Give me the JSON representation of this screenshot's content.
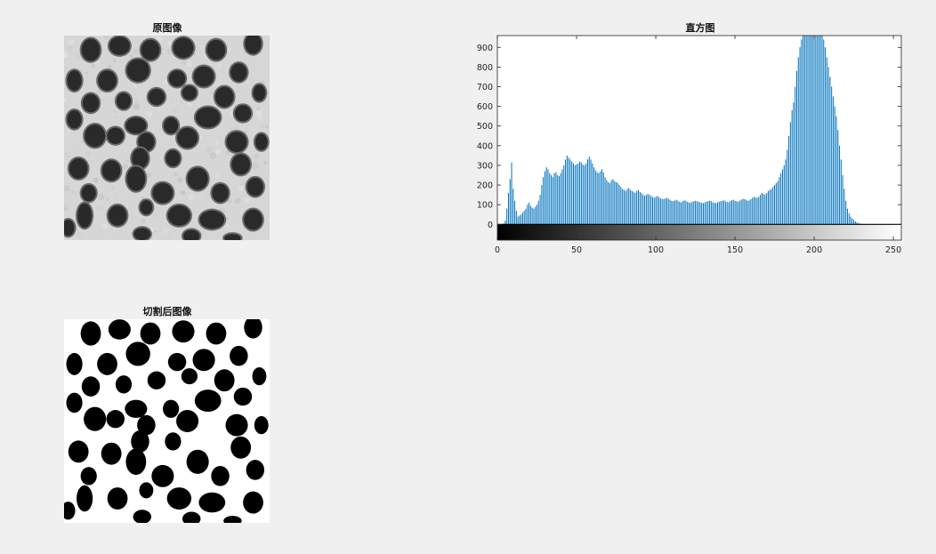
{
  "figure": {
    "original_title": "原图像",
    "histogram_title": "直方图",
    "segmented_title": "切割后图像"
  },
  "colors": {
    "background": "#f0f0f0",
    "bar": "#0072bd",
    "axis": "#262626",
    "image_bg": "#d4d4d4",
    "blob": "#2a2a2a"
  },
  "chart_data": {
    "type": "bar",
    "title": "直方图",
    "xlabel": "",
    "ylabel": "",
    "xlim": [
      0,
      255
    ],
    "ylim": [
      -80,
      960
    ],
    "xticks": [
      0,
      50,
      100,
      150,
      200,
      250
    ],
    "yticks": [
      0,
      100,
      200,
      300,
      400,
      500,
      600,
      700,
      800,
      900
    ],
    "colorbar": "grayscale 0-255 below axis",
    "grid": false,
    "values": [
      0,
      0,
      0,
      0,
      5,
      20,
      80,
      160,
      230,
      315,
      180,
      120,
      70,
      40,
      45,
      50,
      60,
      70,
      80,
      100,
      110,
      95,
      85,
      80,
      90,
      100,
      120,
      150,
      200,
      240,
      270,
      290,
      280,
      260,
      250,
      240,
      260,
      265,
      250,
      245,
      260,
      280,
      300,
      330,
      350,
      340,
      330,
      320,
      310,
      300,
      305,
      310,
      320,
      315,
      305,
      300,
      310,
      330,
      345,
      330,
      310,
      290,
      275,
      265,
      260,
      270,
      280,
      265,
      240,
      225,
      215,
      210,
      225,
      230,
      220,
      215,
      210,
      200,
      190,
      180,
      175,
      170,
      180,
      185,
      175,
      170,
      165,
      160,
      170,
      175,
      165,
      160,
      150,
      145,
      150,
      155,
      150,
      145,
      140,
      135,
      140,
      145,
      138,
      132,
      130,
      128,
      132,
      135,
      130,
      125,
      120,
      118,
      122,
      125,
      120,
      115,
      112,
      118,
      122,
      120,
      115,
      112,
      110,
      115,
      118,
      120,
      118,
      115,
      112,
      110,
      108,
      112,
      115,
      118,
      120,
      118,
      112,
      110,
      108,
      112,
      115,
      118,
      120,
      122,
      118,
      115,
      112,
      118,
      122,
      125,
      120,
      118,
      115,
      120,
      125,
      130,
      128,
      125,
      120,
      122,
      128,
      135,
      140,
      138,
      135,
      140,
      150,
      160,
      155,
      150,
      160,
      170,
      175,
      180,
      190,
      200,
      210,
      220,
      240,
      260,
      280,
      300,
      330,
      380,
      450,
      520,
      580,
      620,
      700,
      780,
      850,
      900,
      940,
      960,
      960,
      960,
      960,
      960,
      960,
      960,
      960,
      960,
      960,
      960,
      960,
      960,
      940,
      900,
      850,
      800,
      750,
      700,
      650,
      600,
      550,
      480,
      400,
      330,
      250,
      180,
      120,
      80,
      55,
      40,
      30,
      22,
      15,
      10,
      6,
      4,
      2,
      1,
      0,
      0,
      0,
      0,
      0,
      0,
      0,
      0,
      0,
      0,
      0,
      0,
      0,
      0,
      0,
      0,
      0,
      0,
      0,
      0,
      0,
      0
    ]
  },
  "original_image": {
    "blobs": [
      [
        0.13,
        0.07,
        0.045,
        0.055
      ],
      [
        0.27,
        0.05,
        0.05,
        0.045
      ],
      [
        0.42,
        0.07,
        0.045,
        0.05
      ],
      [
        0.58,
        0.06,
        0.05,
        0.05
      ],
      [
        0.74,
        0.07,
        0.045,
        0.05
      ],
      [
        0.92,
        0.04,
        0.04,
        0.05
      ],
      [
        0.05,
        0.22,
        0.035,
        0.05
      ],
      [
        0.21,
        0.22,
        0.045,
        0.05
      ],
      [
        0.36,
        0.17,
        0.055,
        0.055
      ],
      [
        0.55,
        0.21,
        0.04,
        0.04
      ],
      [
        0.68,
        0.2,
        0.05,
        0.05
      ],
      [
        0.85,
        0.18,
        0.04,
        0.045
      ],
      [
        0.13,
        0.33,
        0.04,
        0.045
      ],
      [
        0.29,
        0.32,
        0.035,
        0.04
      ],
      [
        0.45,
        0.3,
        0.04,
        0.04
      ],
      [
        0.61,
        0.28,
        0.035,
        0.035
      ],
      [
        0.78,
        0.3,
        0.045,
        0.05
      ],
      [
        0.95,
        0.28,
        0.03,
        0.04
      ],
      [
        0.05,
        0.41,
        0.035,
        0.045
      ],
      [
        0.15,
        0.49,
        0.05,
        0.055
      ],
      [
        0.35,
        0.44,
        0.05,
        0.04
      ],
      [
        0.52,
        0.44,
        0.035,
        0.04
      ],
      [
        0.7,
        0.4,
        0.06,
        0.05
      ],
      [
        0.87,
        0.38,
        0.04,
        0.04
      ],
      [
        0.25,
        0.49,
        0.04,
        0.04
      ],
      [
        0.4,
        0.52,
        0.04,
        0.045
      ],
      [
        0.6,
        0.5,
        0.05,
        0.05
      ],
      [
        0.84,
        0.52,
        0.05,
        0.05
      ],
      [
        0.96,
        0.52,
        0.03,
        0.04
      ],
      [
        0.07,
        0.65,
        0.045,
        0.05
      ],
      [
        0.23,
        0.66,
        0.045,
        0.05
      ],
      [
        0.37,
        0.6,
        0.04,
        0.05
      ],
      [
        0.35,
        0.7,
        0.045,
        0.06
      ],
      [
        0.53,
        0.6,
        0.035,
        0.04
      ],
      [
        0.65,
        0.7,
        0.05,
        0.055
      ],
      [
        0.86,
        0.63,
        0.045,
        0.05
      ],
      [
        0.12,
        0.77,
        0.035,
        0.04
      ],
      [
        0.48,
        0.77,
        0.05,
        0.05
      ],
      [
        0.76,
        0.77,
        0.04,
        0.045
      ],
      [
        0.93,
        0.74,
        0.04,
        0.045
      ],
      [
        0.1,
        0.88,
        0.035,
        0.06
      ],
      [
        0.26,
        0.88,
        0.045,
        0.05
      ],
      [
        0.4,
        0.84,
        0.03,
        0.035
      ],
      [
        0.56,
        0.88,
        0.055,
        0.05
      ],
      [
        0.72,
        0.9,
        0.06,
        0.045
      ],
      [
        0.92,
        0.9,
        0.045,
        0.05
      ],
      [
        0.02,
        0.94,
        0.03,
        0.04
      ],
      [
        0.38,
        0.97,
        0.04,
        0.03
      ],
      [
        0.62,
        0.98,
        0.04,
        0.03
      ],
      [
        0.82,
        0.99,
        0.04,
        0.02
      ]
    ]
  }
}
